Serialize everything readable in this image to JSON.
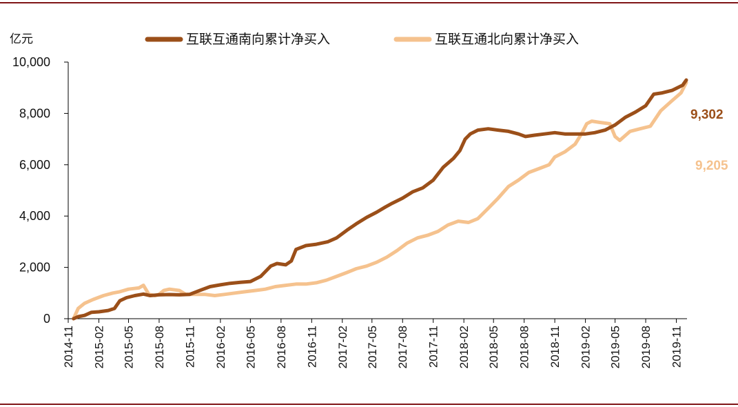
{
  "colors": {
    "frame": "#7f1416",
    "southbound": "#9b4f19",
    "northbound": "#f5c28e",
    "axis": "#000000"
  },
  "chart_data": {
    "type": "line",
    "ylabel": "亿元",
    "ylim": [
      0,
      10000
    ],
    "yticks": [
      {
        "value": 0,
        "label": "0"
      },
      {
        "value": 2000,
        "label": "2,000"
      },
      {
        "value": 4000,
        "label": "4,000"
      },
      {
        "value": 6000,
        "label": "6,000"
      },
      {
        "value": 8000,
        "label": "8,000"
      },
      {
        "value": 10000,
        "label": "10,000"
      }
    ],
    "xlim": [
      "2014-11",
      "2019-12"
    ],
    "xticks": [
      "2014-11",
      "2015-02",
      "2015-05",
      "2015-08",
      "2015-11",
      "2016-02",
      "2016-05",
      "2016-08",
      "2016-11",
      "2017-02",
      "2017-05",
      "2017-08",
      "2017-11",
      "2018-02",
      "2018-05",
      "2018-08",
      "2018-11",
      "2019-02",
      "2019-05",
      "2019-08",
      "2019-11"
    ],
    "legend_position": "top",
    "grid": false,
    "series": [
      {
        "name": "互联互通南向累计净买入",
        "color": "#9b4f19",
        "end_label": "9,302",
        "points": [
          [
            "2014-11-17",
            0
          ],
          [
            "2014-12-01",
            80
          ],
          [
            "2014-12-20",
            130
          ],
          [
            "2015-01-10",
            250
          ],
          [
            "2015-02-01",
            270
          ],
          [
            "2015-03-01",
            320
          ],
          [
            "2015-03-20",
            400
          ],
          [
            "2015-04-05",
            700
          ],
          [
            "2015-04-25",
            820
          ],
          [
            "2015-05-20",
            900
          ],
          [
            "2015-06-15",
            960
          ],
          [
            "2015-07-05",
            900
          ],
          [
            "2015-08-01",
            930
          ],
          [
            "2015-09-01",
            940
          ],
          [
            "2015-10-01",
            930
          ],
          [
            "2015-11-01",
            950
          ],
          [
            "2015-12-01",
            1100
          ],
          [
            "2016-01-01",
            1250
          ],
          [
            "2016-02-01",
            1320
          ],
          [
            "2016-03-01",
            1380
          ],
          [
            "2016-04-01",
            1420
          ],
          [
            "2016-05-01",
            1450
          ],
          [
            "2016-06-01",
            1650
          ],
          [
            "2016-07-01",
            2050
          ],
          [
            "2016-07-20",
            2150
          ],
          [
            "2016-08-15",
            2100
          ],
          [
            "2016-09-01",
            2250
          ],
          [
            "2016-09-15",
            2700
          ],
          [
            "2016-10-15",
            2850
          ],
          [
            "2016-11-15",
            2900
          ],
          [
            "2016-12-20",
            3000
          ],
          [
            "2017-01-15",
            3150
          ],
          [
            "2017-02-15",
            3450
          ],
          [
            "2017-03-15",
            3700
          ],
          [
            "2017-04-15",
            3950
          ],
          [
            "2017-05-15",
            4150
          ],
          [
            "2017-06-10",
            4350
          ],
          [
            "2017-07-01",
            4500
          ],
          [
            "2017-08-01",
            4700
          ],
          [
            "2017-09-01",
            4950
          ],
          [
            "2017-10-01",
            5100
          ],
          [
            "2017-11-01",
            5400
          ],
          [
            "2017-12-01",
            5900
          ],
          [
            "2018-01-01",
            6250
          ],
          [
            "2018-01-20",
            6550
          ],
          [
            "2018-02-05",
            7000
          ],
          [
            "2018-02-20",
            7200
          ],
          [
            "2018-03-15",
            7350
          ],
          [
            "2018-04-15",
            7400
          ],
          [
            "2018-05-15",
            7350
          ],
          [
            "2018-06-15",
            7300
          ],
          [
            "2018-07-15",
            7200
          ],
          [
            "2018-08-05",
            7100
          ],
          [
            "2018-09-01",
            7150
          ],
          [
            "2018-10-01",
            7200
          ],
          [
            "2018-11-01",
            7250
          ],
          [
            "2018-12-01",
            7200
          ],
          [
            "2019-01-01",
            7200
          ],
          [
            "2019-02-01",
            7200
          ],
          [
            "2019-03-01",
            7250
          ],
          [
            "2019-04-01",
            7350
          ],
          [
            "2019-05-01",
            7550
          ],
          [
            "2019-06-01",
            7850
          ],
          [
            "2019-07-01",
            8050
          ],
          [
            "2019-08-01",
            8300
          ],
          [
            "2019-08-25",
            8750
          ],
          [
            "2019-09-20",
            8800
          ],
          [
            "2019-10-20",
            8900
          ],
          [
            "2019-11-20",
            9100
          ],
          [
            "2019-12-01",
            9302
          ]
        ]
      },
      {
        "name": "互联互通北向累计净买入",
        "color": "#f5c28e",
        "end_label": "9,205",
        "points": [
          [
            "2014-11-17",
            0
          ],
          [
            "2014-12-01",
            400
          ],
          [
            "2014-12-20",
            600
          ],
          [
            "2015-01-15",
            750
          ],
          [
            "2015-02-15",
            900
          ],
          [
            "2015-03-15",
            1000
          ],
          [
            "2015-04-05",
            1050
          ],
          [
            "2015-05-01",
            1150
          ],
          [
            "2015-06-01",
            1200
          ],
          [
            "2015-06-15",
            1300
          ],
          [
            "2015-07-01",
            950
          ],
          [
            "2015-07-20",
            900
          ],
          [
            "2015-08-01",
            950
          ],
          [
            "2015-08-15",
            1100
          ],
          [
            "2015-09-01",
            1150
          ],
          [
            "2015-10-01",
            1100
          ],
          [
            "2015-10-20",
            950
          ],
          [
            "2015-11-15",
            950
          ],
          [
            "2015-12-15",
            950
          ],
          [
            "2016-01-15",
            900
          ],
          [
            "2016-02-15",
            950
          ],
          [
            "2016-03-15",
            1000
          ],
          [
            "2016-04-15",
            1050
          ],
          [
            "2016-05-15",
            1100
          ],
          [
            "2016-06-15",
            1150
          ],
          [
            "2016-07-15",
            1250
          ],
          [
            "2016-08-15",
            1300
          ],
          [
            "2016-09-15",
            1350
          ],
          [
            "2016-10-15",
            1350
          ],
          [
            "2016-11-15",
            1400
          ],
          [
            "2016-12-15",
            1500
          ],
          [
            "2017-01-15",
            1650
          ],
          [
            "2017-02-15",
            1800
          ],
          [
            "2017-03-15",
            1950
          ],
          [
            "2017-04-15",
            2050
          ],
          [
            "2017-05-15",
            2200
          ],
          [
            "2017-06-15",
            2400
          ],
          [
            "2017-07-15",
            2650
          ],
          [
            "2017-08-15",
            2950
          ],
          [
            "2017-09-15",
            3150
          ],
          [
            "2017-10-15",
            3250
          ],
          [
            "2017-11-15",
            3400
          ],
          [
            "2017-12-15",
            3650
          ],
          [
            "2018-01-15",
            3800
          ],
          [
            "2018-02-15",
            3750
          ],
          [
            "2018-03-15",
            3900
          ],
          [
            "2018-04-15",
            4300
          ],
          [
            "2018-05-15",
            4700
          ],
          [
            "2018-06-15",
            5150
          ],
          [
            "2018-07-15",
            5400
          ],
          [
            "2018-08-15",
            5700
          ],
          [
            "2018-09-15",
            5850
          ],
          [
            "2018-10-15",
            6000
          ],
          [
            "2018-11-01",
            6300
          ],
          [
            "2018-12-01",
            6500
          ],
          [
            "2019-01-01",
            6800
          ],
          [
            "2019-01-20",
            7200
          ],
          [
            "2019-02-05",
            7600
          ],
          [
            "2019-02-20",
            7700
          ],
          [
            "2019-03-15",
            7650
          ],
          [
            "2019-04-15",
            7600
          ],
          [
            "2019-05-01",
            7100
          ],
          [
            "2019-05-15",
            6950
          ],
          [
            "2019-06-15",
            7300
          ],
          [
            "2019-07-15",
            7400
          ],
          [
            "2019-08-15",
            7500
          ],
          [
            "2019-09-15",
            8100
          ],
          [
            "2019-10-15",
            8450
          ],
          [
            "2019-11-15",
            8800
          ],
          [
            "2019-12-01",
            9205
          ]
        ]
      }
    ]
  }
}
